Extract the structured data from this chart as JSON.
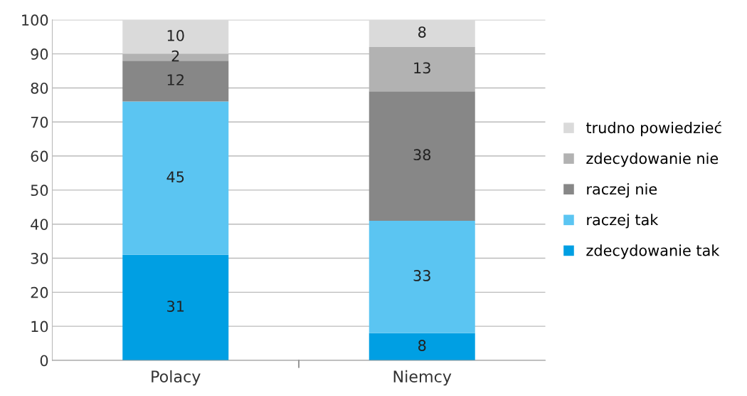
{
  "chart_data": {
    "type": "bar",
    "stacked": true,
    "categories": [
      "Polacy",
      "Niemcy"
    ],
    "series": [
      {
        "name": "zdecydowanie tak",
        "color": "#009fe3",
        "values": [
          31,
          8
        ]
      },
      {
        "name": "raczej tak",
        "color": "#5bc5f2",
        "values": [
          45,
          33
        ]
      },
      {
        "name": "raczej nie",
        "color": "#878787",
        "values": [
          12,
          38
        ]
      },
      {
        "name": "zdecydowanie nie",
        "color": "#b2b2b2",
        "values": [
          2,
          13
        ]
      },
      {
        "name": "trudno powiedzieć",
        "color": "#dadada",
        "values": [
          10,
          8
        ]
      }
    ],
    "ylim": [
      0,
      100
    ],
    "yticks": [
      0,
      10,
      20,
      30,
      40,
      50,
      60,
      70,
      80,
      90,
      100
    ],
    "grid": "y",
    "legend": "right",
    "data_labels": true
  }
}
